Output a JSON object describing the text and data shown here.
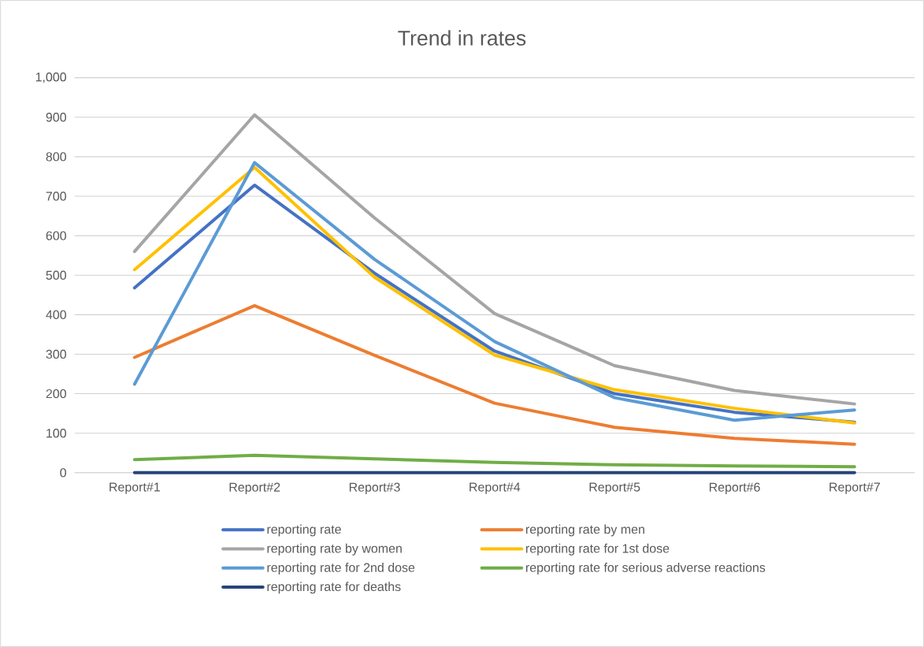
{
  "chart_data": {
    "type": "line",
    "title": "Trend in rates",
    "categories": [
      "Report#1",
      "Report#2",
      "Report#3",
      "Report#4",
      "Report#5",
      "Report#6",
      "Report#7"
    ],
    "series": [
      {
        "name": "reporting rate",
        "color": "#4472c4",
        "values": [
          468,
          728,
          505,
          308,
          200,
          153,
          128
        ]
      },
      {
        "name": "reporting rate by men",
        "color": "#ed7d31",
        "values": [
          292,
          423,
          297,
          176,
          115,
          87,
          72
        ]
      },
      {
        "name": "reporting rate by women",
        "color": "#a5a5a5",
        "values": [
          560,
          906,
          645,
          403,
          271,
          208,
          174
        ]
      },
      {
        "name": "reporting rate for 1st dose",
        "color": "#ffc000",
        "values": [
          514,
          773,
          495,
          298,
          210,
          163,
          126
        ]
      },
      {
        "name": "reporting rate for 2nd dose",
        "color": "#5b9bd5",
        "values": [
          224,
          785,
          540,
          332,
          190,
          133,
          159
        ]
      },
      {
        "name": "reporting rate for serious adverse reactions",
        "color": "#70ad47",
        "values": [
          33,
          44,
          35,
          26,
          20,
          17,
          15
        ]
      },
      {
        "name": "reporting rate for deaths",
        "color": "#264478",
        "values": [
          0,
          0,
          0,
          0,
          0,
          0,
          0
        ]
      }
    ],
    "ylim": [
      0,
      1000
    ],
    "yticks": [
      0,
      100,
      200,
      300,
      400,
      500,
      600,
      700,
      800,
      900,
      {
        "value": 1000,
        "label": "1,000"
      }
    ],
    "grid": "y",
    "legend": "bottom",
    "marker": "none",
    "line_style": "solid"
  }
}
